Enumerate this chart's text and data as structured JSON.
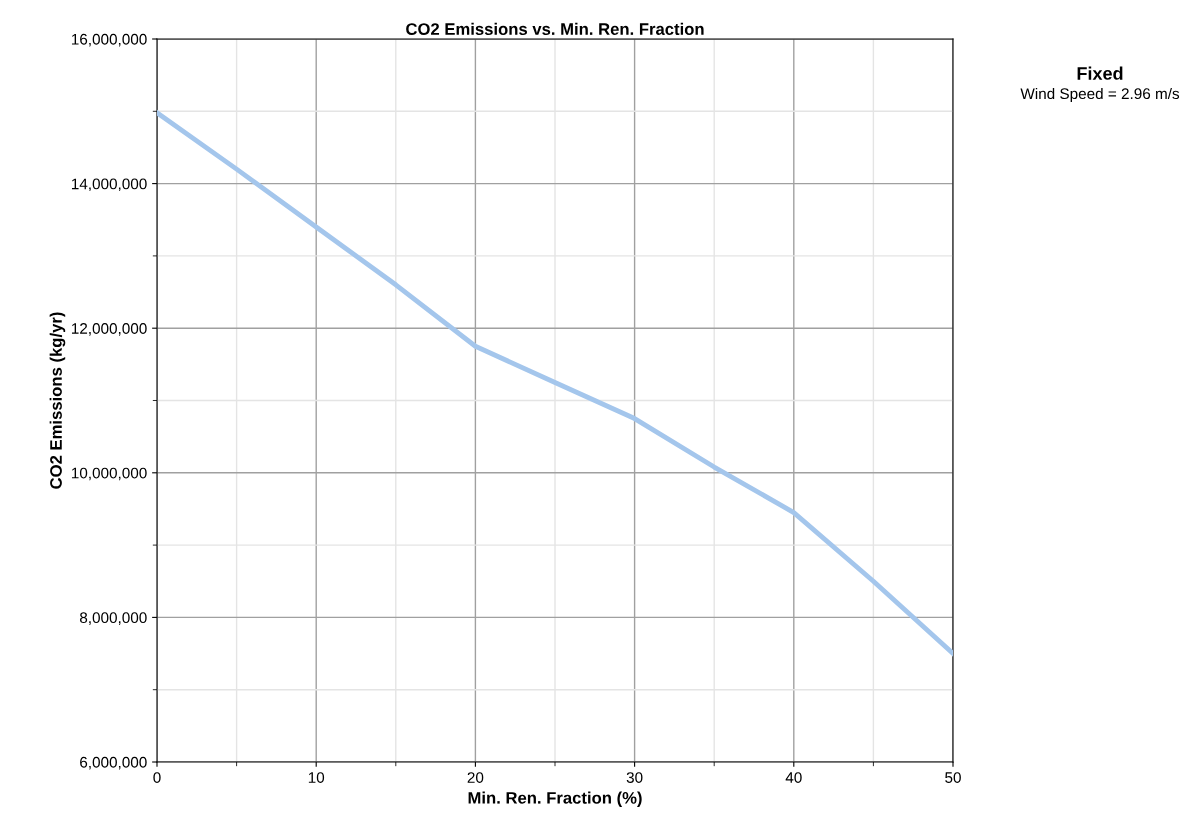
{
  "chart_data": {
    "type": "line",
    "title": "CO2 Emissions vs. Min. Ren. Fraction",
    "xlabel": "Min. Ren. Fraction (%)",
    "ylabel": "CO2 Emissions (kg/yr)",
    "annotations": [
      "Fixed",
      "Wind Speed = 2.96 m/s"
    ],
    "x": [
      0,
      5,
      10,
      15,
      20,
      25,
      30,
      35,
      40,
      45,
      50
    ],
    "series": [
      {
        "color": "#a4c6ec",
        "values": [
          14980000,
          14200000,
          13400000,
          12600000,
          11750000,
          11250000,
          10750000,
          10080000,
          9450000,
          8500000,
          7500000
        ]
      }
    ],
    "xlim": [
      0,
      50
    ],
    "xticks": [
      0,
      10,
      20,
      30,
      40,
      50
    ],
    "ylim": [
      6000000,
      16000000
    ],
    "yticks": [
      {
        "value": 6000000,
        "label": "6,000,000"
      },
      {
        "value": 8000000,
        "label": "8,000,000"
      },
      {
        "value": 10000000,
        "label": "10,000,000"
      },
      {
        "value": 12000000,
        "label": "12,000,000"
      },
      {
        "value": 14000000,
        "label": "14,000,000"
      },
      {
        "value": 16000000,
        "label": "16,000,000"
      }
    ],
    "grid": true,
    "marker": "none",
    "line_style": "solid"
  }
}
